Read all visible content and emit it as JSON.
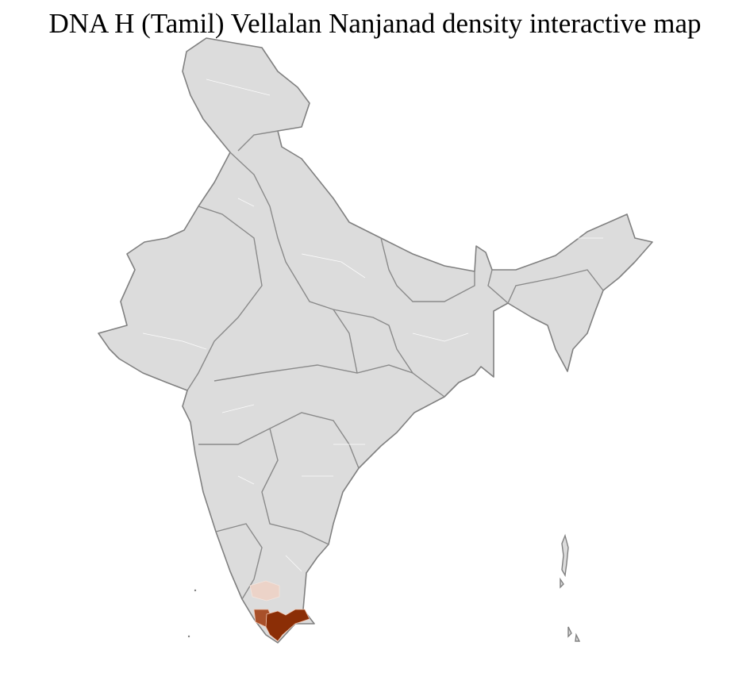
{
  "title": "DNA H (Tamil) Vellalan Nanjanad density interactive map",
  "map": {
    "region": "India (district level)",
    "base_color": "#dcdcdc",
    "border_color": "#808080",
    "highlight_colors": {
      "high": "#8b2e06",
      "medium": "#a8502a",
      "low": "#ecd3c8"
    }
  }
}
